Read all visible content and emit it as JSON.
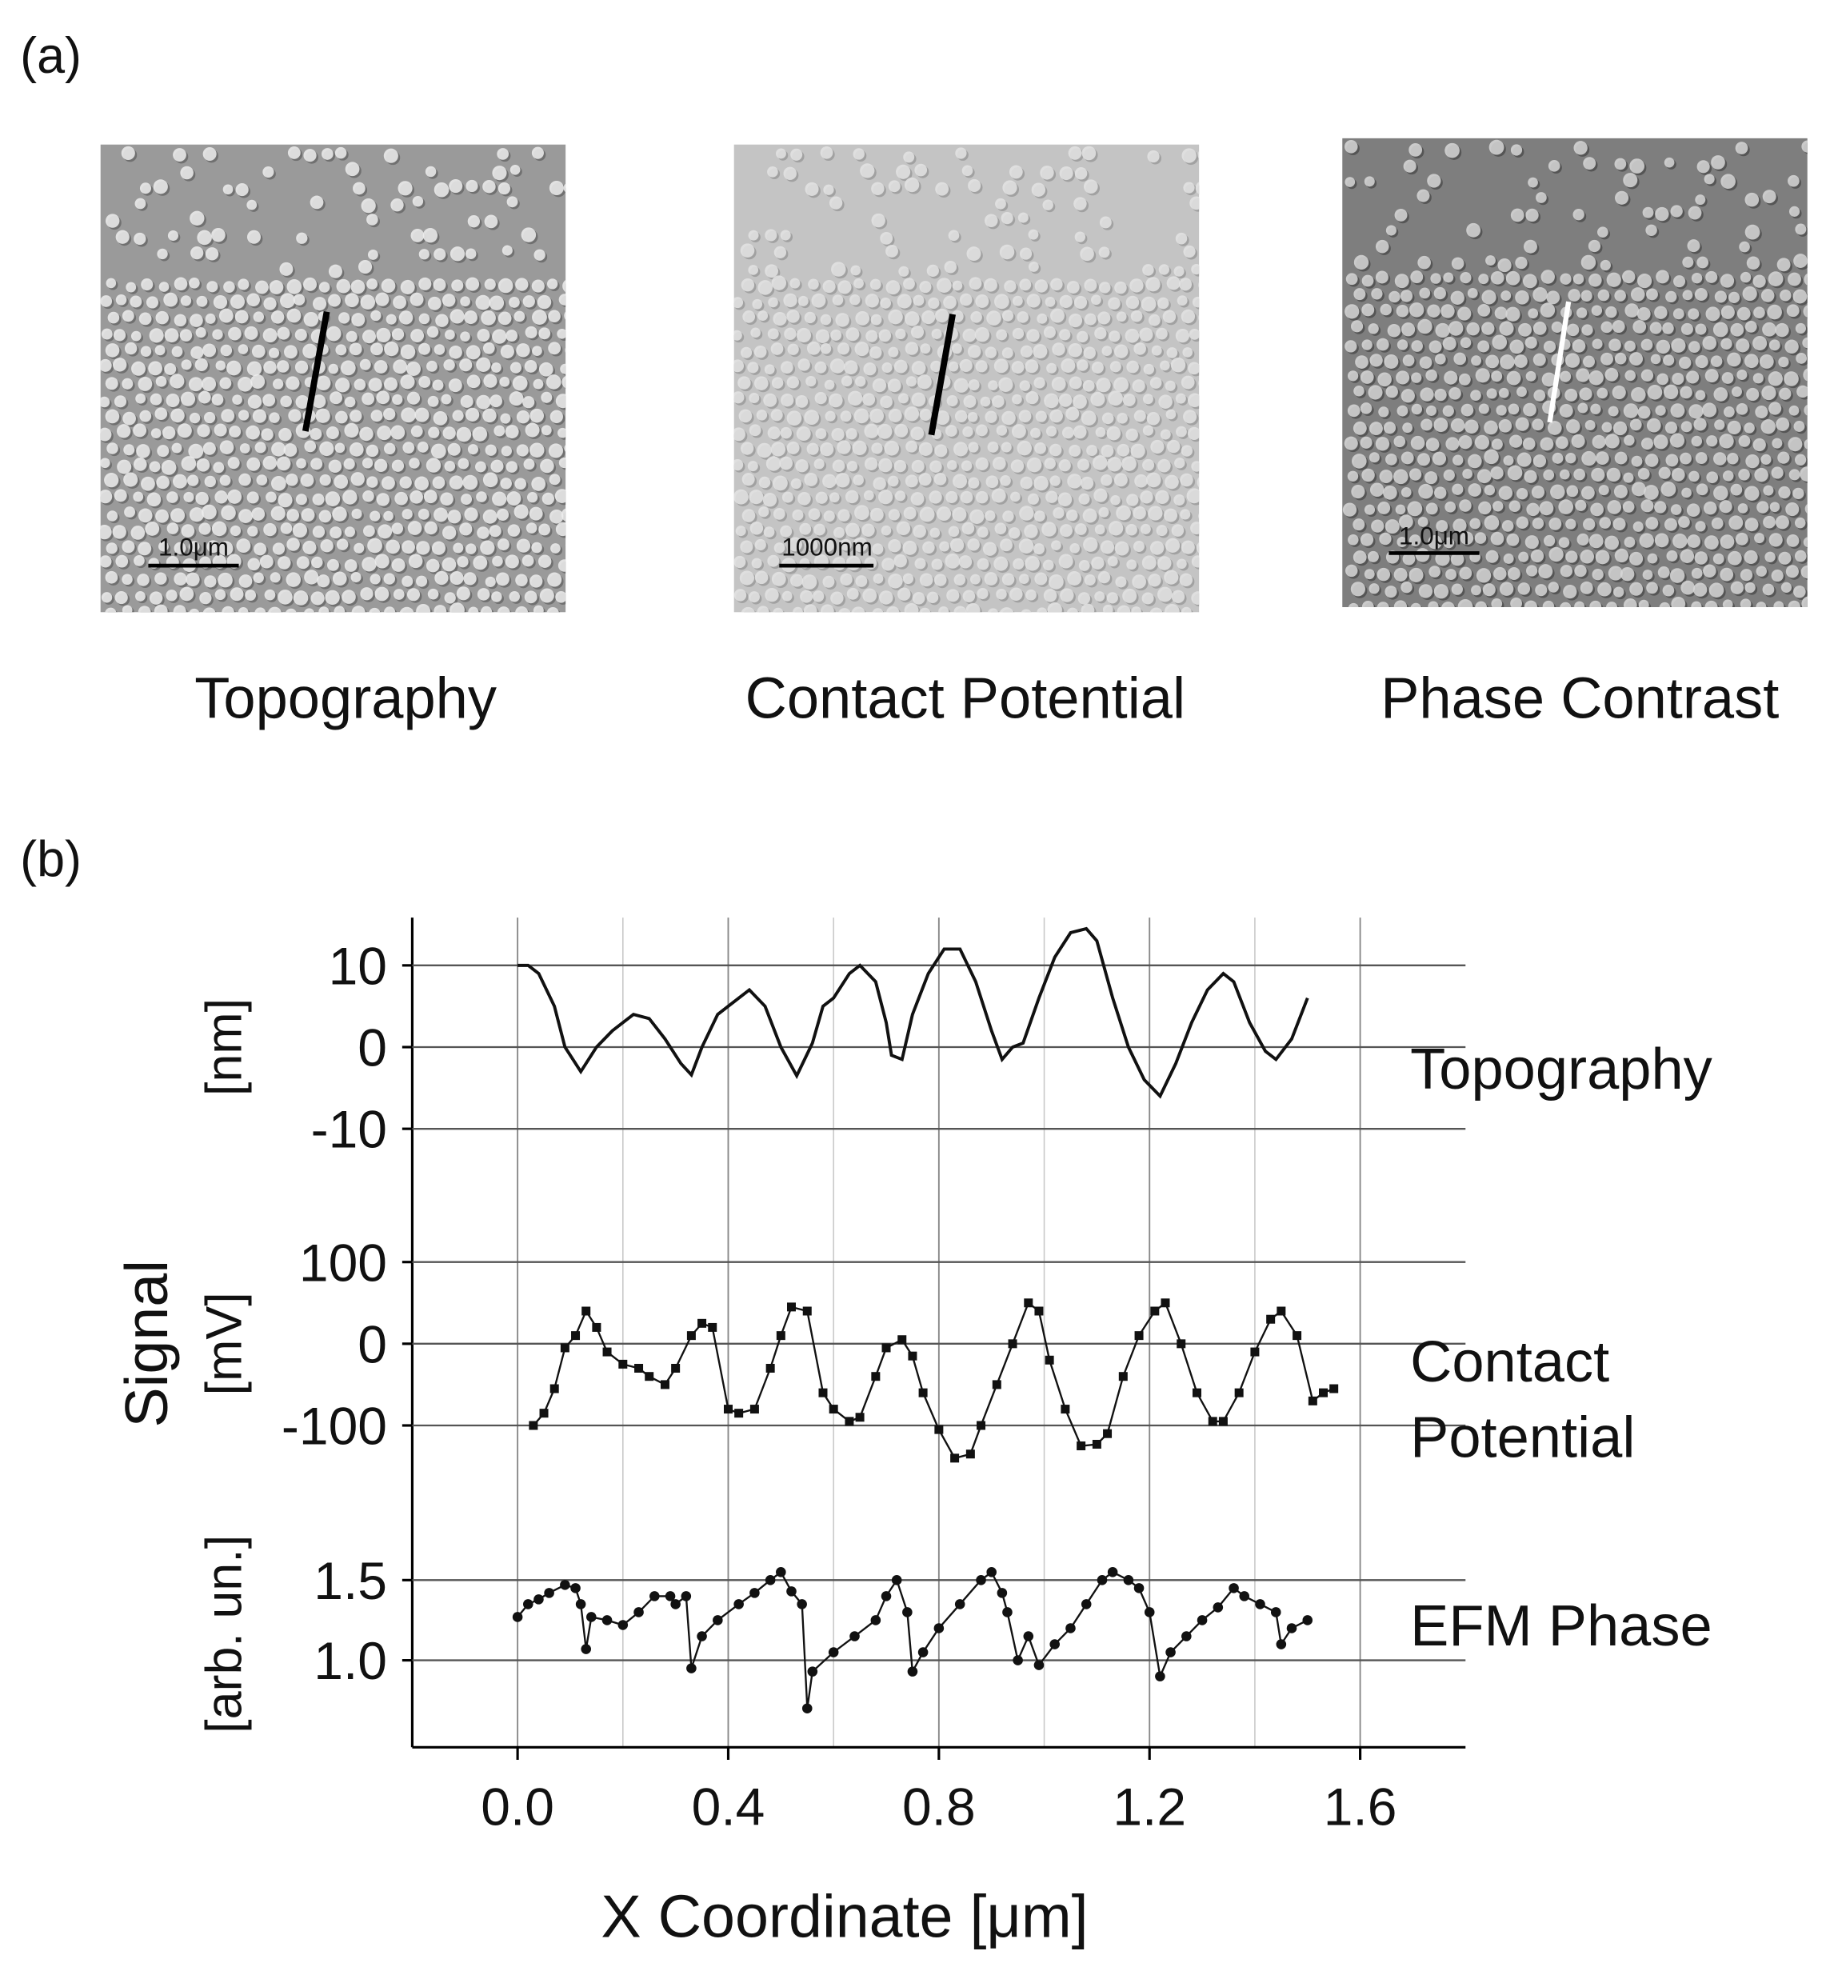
{
  "panel_a": {
    "label": "(a)",
    "images": [
      {
        "caption": "Topography",
        "scale_bar": "1.0μm"
      },
      {
        "caption": "Contact Potential",
        "scale_bar": "1000nm"
      },
      {
        "caption": "Phase Contrast",
        "scale_bar": "1.0μm"
      }
    ]
  },
  "panel_b": {
    "label": "(b)"
  },
  "chart_data": {
    "type": "line",
    "xlabel": "X Coordinate [μm]",
    "ylabel": "Signal",
    "xlim": [
      -0.2,
      1.8
    ],
    "xticks": [
      {
        "value": 0,
        "label": "0.0"
      },
      0.4,
      0.8,
      1.2,
      1.6
    ],
    "xminor": [
      0.2,
      0.6,
      1.0,
      1.4
    ],
    "grid": true,
    "panels": [
      {
        "label": [
          "Topography"
        ],
        "unit": "[nm]",
        "marker": "none",
        "color": "#111111",
        "ylim": [
          -13,
          15
        ],
        "yticks": [
          10,
          0,
          -10
        ],
        "x": [
          0.0,
          0.02,
          0.04,
          0.07,
          0.09,
          0.12,
          0.15,
          0.18,
          0.22,
          0.25,
          0.28,
          0.31,
          0.33,
          0.35,
          0.38,
          0.42,
          0.44,
          0.47,
          0.5,
          0.53,
          0.56,
          0.58,
          0.6,
          0.63,
          0.65,
          0.68,
          0.7,
          0.71,
          0.73,
          0.75,
          0.78,
          0.81,
          0.84,
          0.87,
          0.9,
          0.92,
          0.94,
          0.96,
          0.99,
          1.02,
          1.05,
          1.08,
          1.1,
          1.13,
          1.16,
          1.19,
          1.22,
          1.25,
          1.28,
          1.31,
          1.34,
          1.36,
          1.39,
          1.42,
          1.44,
          1.47,
          1.5
        ],
        "values": [
          10,
          10,
          9,
          5,
          0,
          -3,
          0,
          2,
          4,
          3.5,
          1,
          -2,
          -3.4,
          0,
          4,
          6,
          7,
          5,
          0,
          -3.5,
          0.5,
          5,
          6,
          9,
          10,
          8,
          3,
          -1,
          -1.5,
          4,
          9,
          12,
          12,
          8,
          2,
          -1.5,
          0,
          0.5,
          6,
          11,
          14,
          14.5,
          13,
          6,
          0,
          -4,
          -6,
          -2,
          3,
          7,
          9,
          8,
          3,
          -0.5,
          -1.5,
          1,
          6
        ]
      },
      {
        "label": [
          "Contact",
          "Potential"
        ],
        "unit": "[mV]",
        "marker": "square",
        "color": "#111111",
        "ylim": [
          -170,
          120
        ],
        "yticks": [
          100,
          0,
          -100
        ],
        "x": [
          0.03,
          0.05,
          0.07,
          0.09,
          0.11,
          0.13,
          0.15,
          0.17,
          0.2,
          0.23,
          0.25,
          0.28,
          0.3,
          0.33,
          0.35,
          0.37,
          0.4,
          0.42,
          0.45,
          0.48,
          0.5,
          0.52,
          0.55,
          0.58,
          0.6,
          0.63,
          0.65,
          0.68,
          0.7,
          0.73,
          0.75,
          0.77,
          0.8,
          0.83,
          0.86,
          0.88,
          0.91,
          0.94,
          0.97,
          0.99,
          1.01,
          1.04,
          1.07,
          1.1,
          1.12,
          1.15,
          1.18,
          1.21,
          1.23,
          1.26,
          1.29,
          1.32,
          1.34,
          1.37,
          1.4,
          1.43,
          1.45,
          1.48,
          1.51,
          1.53,
          1.55
        ],
        "values": [
          -100,
          -85,
          -55,
          -5,
          10,
          40,
          20,
          -10,
          -25,
          -30,
          -40,
          -50,
          -30,
          10,
          25,
          20,
          -80,
          -85,
          -80,
          -30,
          10,
          45,
          40,
          -60,
          -80,
          -95,
          -90,
          -40,
          -5,
          5,
          -15,
          -60,
          -105,
          -140,
          -135,
          -100,
          -50,
          0,
          50,
          40,
          -20,
          -80,
          -125,
          -123,
          -110,
          -40,
          10,
          40,
          50,
          0,
          -60,
          -95,
          -95,
          -60,
          -10,
          30,
          40,
          10,
          -70,
          -60,
          -55
        ]
      },
      {
        "label": [
          "EFM Phase"
        ],
        "unit": "[arb. un.]",
        "marker": "circle",
        "color": "#111111",
        "ylim": [
          0.45,
          1.9
        ],
        "yticks": [
          1.5,
          {
            "value": 1,
            "label": "1.0"
          }
        ],
        "x": [
          0.0,
          0.02,
          0.04,
          0.06,
          0.09,
          0.11,
          0.12,
          0.13,
          0.14,
          0.17,
          0.2,
          0.23,
          0.26,
          0.29,
          0.3,
          0.32,
          0.33,
          0.35,
          0.38,
          0.42,
          0.45,
          0.48,
          0.5,
          0.52,
          0.54,
          0.55,
          0.56,
          0.6,
          0.64,
          0.68,
          0.7,
          0.72,
          0.74,
          0.75,
          0.77,
          0.8,
          0.84,
          0.88,
          0.9,
          0.92,
          0.93,
          0.95,
          0.97,
          0.99,
          1.02,
          1.05,
          1.08,
          1.11,
          1.13,
          1.16,
          1.18,
          1.2,
          1.22,
          1.24,
          1.27,
          1.3,
          1.33,
          1.36,
          1.38,
          1.41,
          1.44,
          1.45,
          1.47,
          1.5
        ],
        "values": [
          1.27,
          1.35,
          1.38,
          1.42,
          1.47,
          1.45,
          1.35,
          1.07,
          1.27,
          1.25,
          1.22,
          1.3,
          1.4,
          1.4,
          1.35,
          1.4,
          0.95,
          1.15,
          1.25,
          1.35,
          1.42,
          1.5,
          1.55,
          1.43,
          1.35,
          0.7,
          0.93,
          1.05,
          1.15,
          1.25,
          1.4,
          1.5,
          1.3,
          0.93,
          1.05,
          1.2,
          1.35,
          1.5,
          1.55,
          1.42,
          1.3,
          1.0,
          1.15,
          0.97,
          1.1,
          1.2,
          1.35,
          1.5,
          1.55,
          1.5,
          1.45,
          1.3,
          0.9,
          1.05,
          1.15,
          1.25,
          1.33,
          1.45,
          1.4,
          1.35,
          1.3,
          1.1,
          1.2,
          1.25
        ]
      }
    ]
  }
}
